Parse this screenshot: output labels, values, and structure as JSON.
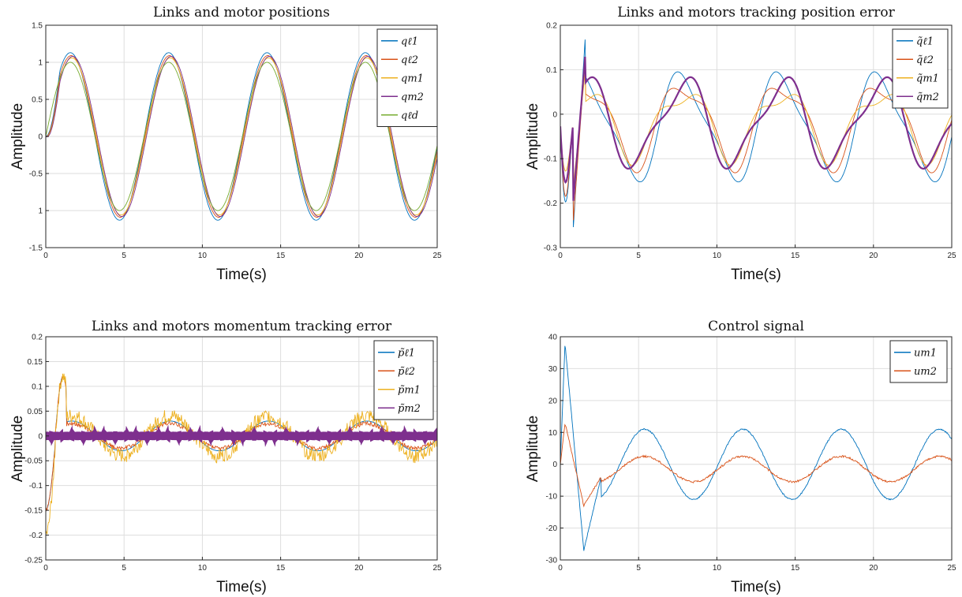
{
  "chart_data": [
    {
      "type": "line",
      "title": "Links and motor positions",
      "xlabel": "Time(s)",
      "ylabel": "Amplitude",
      "xlim": [
        0,
        25
      ],
      "ylim": [
        -1.5,
        1.5
      ],
      "xticks": [
        "0",
        "5",
        "10",
        "15",
        "20",
        "25"
      ],
      "yticks": [
        "1.5",
        "1",
        "0.5",
        "0",
        "-0.5",
        "1",
        "-1.5"
      ],
      "grid": true,
      "legend_position": "top-right",
      "series": [
        {
          "name": "qℓ1",
          "color": "#0072BD",
          "amp": 1.13,
          "period": 6.28,
          "tail": 0.12
        },
        {
          "name": "qℓ2",
          "color": "#D95319",
          "amp": 1.09,
          "period": 6.28,
          "tail": 0.08
        },
        {
          "name": "qm1",
          "color": "#EDB120",
          "amp": 1.06,
          "period": 6.28,
          "tail": 0.05
        },
        {
          "name": "qm2",
          "color": "#7E2F8E",
          "amp": 1.08,
          "period": 6.28,
          "tail": 0.08
        },
        {
          "name": "qℓd",
          "color": "#77AC30",
          "amp": 1.0,
          "period": 6.28,
          "tail": 0.0
        }
      ]
    },
    {
      "type": "line",
      "title": "Links and motors tracking position error",
      "xlabel": "Time(s)",
      "ylabel": "Amplitude",
      "xlim": [
        0,
        25
      ],
      "ylim": [
        -0.3,
        0.25
      ],
      "xticks": [
        "0",
        "5",
        "10",
        "15",
        "20",
        "25"
      ],
      "yticks": [
        "0.2",
        "0.1",
        "0",
        "-0.1",
        "-0.2",
        "-0.3"
      ],
      "grid": true,
      "legend_position": "top-right",
      "series": [
        {
          "name": "q̃ℓ1",
          "color": "#0072BD",
          "peak": 0.225,
          "low": -0.27
        },
        {
          "name": "q̃ℓ2",
          "color": "#D95319",
          "peak": 0.175,
          "low": -0.25
        },
        {
          "name": "q̃m1",
          "color": "#EDB120",
          "peak": 0.14,
          "low": -0.16
        },
        {
          "name": "q̃m2",
          "color": "#7E2F8E",
          "peak": 0.18,
          "low": -0.2
        }
      ]
    },
    {
      "type": "line",
      "title": "Links and motors momentum tracking error",
      "xlabel": "Time(s)",
      "ylabel": "Amplitude",
      "xlim": [
        0,
        25
      ],
      "ylim": [
        -0.25,
        0.2
      ],
      "xticks": [
        "0",
        "5",
        "10",
        "15",
        "20",
        "25"
      ],
      "yticks": [
        "0.2",
        "0.15",
        "0.1",
        "0.05",
        "0",
        "-0.05",
        "-0.1",
        "-0.15",
        "-0.2",
        "-0.25"
      ],
      "grid": true,
      "legend_position": "top-right",
      "series": [
        {
          "name": "p̃ℓ1",
          "color": "#0072BD",
          "amp": 0.03
        },
        {
          "name": "p̃ℓ2",
          "color": "#D95319",
          "amp": 0.025
        },
        {
          "name": "p̃m1",
          "color": "#EDB120",
          "amp": 0.04
        },
        {
          "name": "p̃m2",
          "color": "#7E2F8E",
          "amp": 0.008
        }
      ]
    },
    {
      "type": "line",
      "title": "Control signal",
      "xlabel": "Time(s)",
      "ylabel": "Amplitude",
      "xlim": [
        0,
        25
      ],
      "ylim": [
        -30,
        40
      ],
      "xticks": [
        "0",
        "5",
        "10",
        "15",
        "20",
        "25"
      ],
      "yticks": [
        "40",
        "30",
        "20",
        "10",
        "0",
        "-10",
        "-20",
        "-30"
      ],
      "grid": true,
      "legend_position": "top-right",
      "series": [
        {
          "name": "um1",
          "color": "#0072BD",
          "peak": 38,
          "low": -27,
          "amp": 11
        },
        {
          "name": "um2",
          "color": "#D95319",
          "peak": 13,
          "low": -13,
          "amp": 4
        }
      ]
    }
  ]
}
